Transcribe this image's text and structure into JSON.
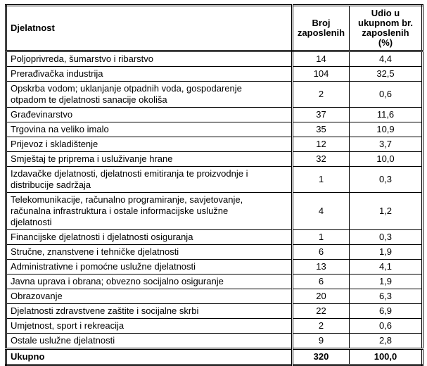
{
  "table": {
    "header": {
      "label": "Djelatnost",
      "count": "Broj\nzaposlenih",
      "share": "Udio u\nukupnom br.\nzaposlenih\n(%)"
    },
    "rows": [
      {
        "label": "Poljoprivreda, šumarstvo i ribarstvo",
        "count": "14",
        "share": "4,4"
      },
      {
        "label": "Prerađivačka industrija",
        "count": "104",
        "share": "32,5"
      },
      {
        "label": "Opskrba vodom; uklanjanje otpadnih voda, gospodarenje\notpadom te djelatnosti sanacije okoliša",
        "count": "2",
        "share": "0,6"
      },
      {
        "label": "Građevinarstvo",
        "count": "37",
        "share": "11,6"
      },
      {
        "label": "Trgovina na veliko imalo",
        "count": "35",
        "share": "10,9"
      },
      {
        "label": "Prijevoz i skladištenje",
        "count": "12",
        "share": "3,7"
      },
      {
        "label": "Smještaj te priprema i usluživanje hrane",
        "count": "32",
        "share": "10,0"
      },
      {
        "label": "Izdavačke djelatnosti, djelatnosti emitiranja te proizvodnje i\ndistribucije sadržaja",
        "count": "1",
        "share": "0,3"
      },
      {
        "label": "Telekomunikacije, računalno programiranje, savjetovanje,\nračunalna infrastruktura i ostale informacijske uslužne\ndjelatnosti",
        "count": "4",
        "share": "1,2"
      },
      {
        "label": "Financijske djelatnosti i djelatnosti osiguranja",
        "count": "1",
        "share": "0,3"
      },
      {
        "label": "Stručne, znanstvene i tehničke djelatnosti",
        "count": "6",
        "share": "1,9"
      },
      {
        "label": "Administrativne i pomoćne uslužne djelatnosti",
        "count": "13",
        "share": "4,1"
      },
      {
        "label": "Javna uprava i obrana; obvezno socijalno osiguranje",
        "count": "6",
        "share": "1,9"
      },
      {
        "label": "Obrazovanje",
        "count": "20",
        "share": "6,3"
      },
      {
        "label": "Djelatnosti zdravstvene zaštite i socijalne skrbi",
        "count": "22",
        "share": "6,9"
      },
      {
        "label": "Umjetnost, sport i rekreacija",
        "count": "2",
        "share": "0,6"
      },
      {
        "label": "Ostale uslužne djelatnosti",
        "count": "9",
        "share": "2,8"
      }
    ],
    "footer": {
      "label": "Ukupno",
      "count": "320",
      "share": "100,0"
    }
  },
  "colors": {
    "border": "#000000",
    "text": "#000000",
    "background": "#ffffff"
  }
}
